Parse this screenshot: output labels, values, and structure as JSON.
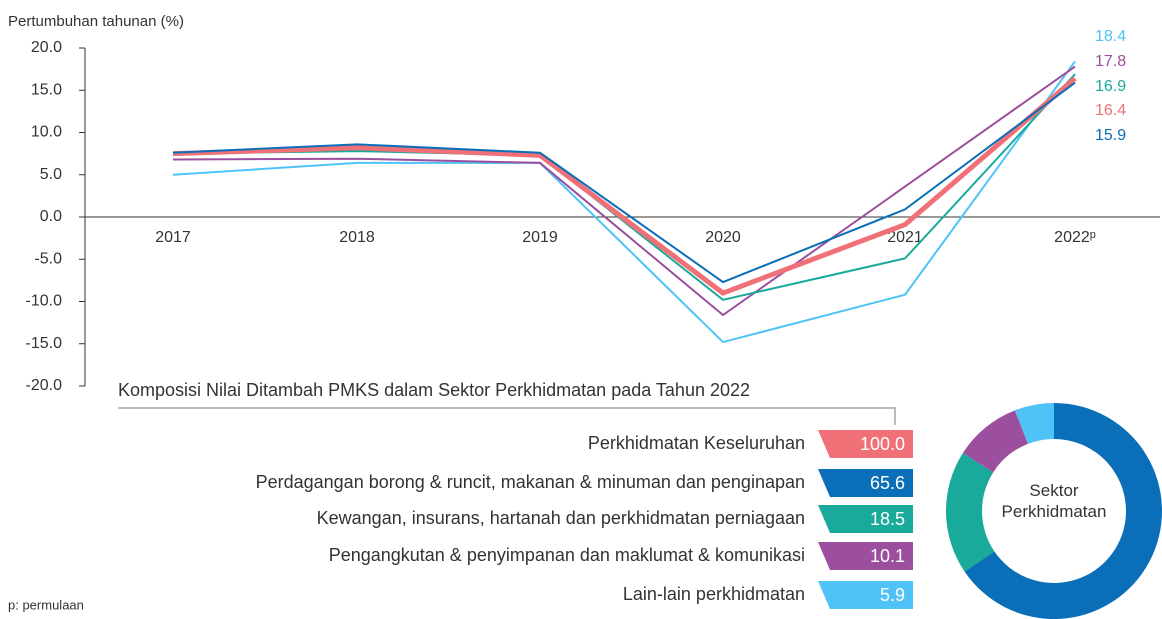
{
  "chart_data": [
    {
      "type": "line",
      "y_label": "Pertumbuhan tahunan (%)",
      "categories": [
        "2017",
        "2018",
        "2019",
        "2020",
        "2021",
        "2022ᵖ"
      ],
      "ylim": [
        -20,
        20
      ],
      "yticks": [
        {
          "value": 20,
          "label": "20.0"
        },
        {
          "value": 15,
          "label": "15.0"
        },
        {
          "value": 10,
          "label": "10.0"
        },
        {
          "value": 5,
          "label": "5.0"
        },
        {
          "value": 0,
          "label": "0.0"
        },
        {
          "value": -5,
          "label": "-5.0"
        },
        {
          "value": -10,
          "label": "-10.0"
        },
        {
          "value": -15,
          "label": "-15.0"
        },
        {
          "value": -20,
          "label": "-20.0"
        }
      ],
      "series": [
        {
          "color": "#4fc3f7",
          "values": [
            5.0,
            6.4,
            6.4,
            -14.8,
            -9.2,
            18.4
          ]
        },
        {
          "color": "#9b4f9e",
          "values": [
            6.8,
            6.9,
            6.4,
            -11.6,
            3.6,
            17.8
          ]
        },
        {
          "color": "#1aaa9b",
          "values": [
            7.5,
            7.8,
            7.3,
            -9.8,
            -4.9,
            16.9
          ]
        },
        {
          "color": "#f07077",
          "values": [
            7.5,
            8.2,
            7.3,
            -9.0,
            -0.9,
            16.4
          ]
        },
        {
          "color": "#0a6fb8",
          "values": [
            7.6,
            8.6,
            7.6,
            -7.7,
            0.9,
            15.9
          ]
        }
      ]
    },
    {
      "type": "donut",
      "title": "Komposisi Nilai Ditambah PMKS dalam Sektor Perkhidmatan pada Tahun 2022",
      "center_label": "Sektor Perkhidmatan",
      "total": {
        "label": "Perkhidmatan Keseluruhan",
        "value": 100.0,
        "value_label": "100.0",
        "color": "#f07077"
      },
      "categories": [
        "Perdagangan borong & runcit, makanan & minuman dan penginapan",
        "Kewangan, insurans, hartanah dan perkhidmatan perniagaan",
        "Pengangkutan & penyimpanan dan maklumat & komunikasi",
        "Lain-lain perkhidmatan"
      ],
      "values": [
        65.6,
        18.5,
        10.1,
        5.9
      ],
      "value_labels": [
        "65.6",
        "18.5",
        "10.1",
        "5.9"
      ],
      "colors": [
        "#0a6fb8",
        "#1aaa9b",
        "#9b4f9e",
        "#4fc3f7"
      ]
    }
  ],
  "footnote": "p: permulaan"
}
